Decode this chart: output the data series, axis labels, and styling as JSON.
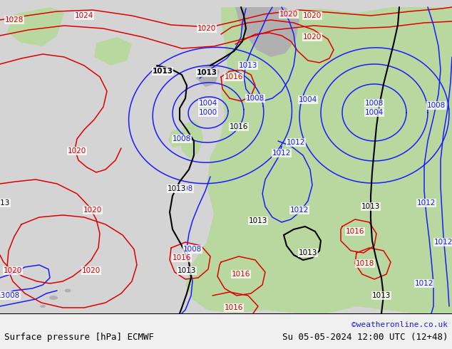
{
  "title_left": "Surface pressure [hPa] ECMWF",
  "title_right": "Su 05-05-2024 12:00 UTC (12+48)",
  "credit": "©weatheronline.co.uk",
  "blue": "#1a1aff",
  "red": "#dd0000",
  "black": "#000000",
  "green_land": "#b8d8a0",
  "gray_land": "#a8a8a8",
  "ocean_bg": "#d0d0d0",
  "footer_bg": "#f0f0f0",
  "footer_sep": "#000000",
  "footer_fontsize": 9,
  "credit_fontsize": 8,
  "label_fontsize": 7.5,
  "contour_lw": 1.1,
  "black_lw": 1.5
}
